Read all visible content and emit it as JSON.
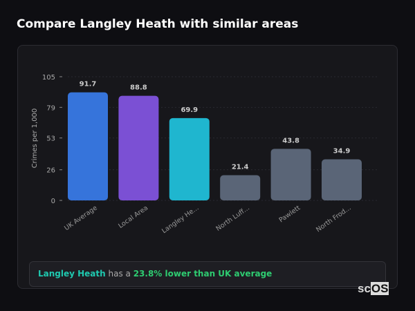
{
  "title": "Compare Langley Heath with similar areas",
  "chart_data": {
    "type": "bar",
    "ylabel": "Crimes per 1,000",
    "ylim": [
      0,
      105
    ],
    "yticks": [
      0,
      26,
      53,
      79,
      105
    ],
    "categories": [
      "UK Average",
      "Local Area",
      "Langley He...",
      "North Luff...",
      "Pawlett",
      "North Frod..."
    ],
    "values": [
      91.7,
      88.8,
      69.9,
      21.4,
      43.8,
      34.9
    ],
    "value_labels": [
      "91.7",
      "88.8",
      "69.9",
      "21.4",
      "43.8",
      "34.9"
    ],
    "colors": [
      "#3674db",
      "#7b50d4",
      "#1fb6cf",
      "#5a6577",
      "#5a6577",
      "#5a6577"
    ],
    "grid": true
  },
  "summary": {
    "area": "Langley Heath",
    "middle": " has a ",
    "comparison": "23.8% lower than UK average"
  },
  "logo": {
    "text": "scOS"
  }
}
